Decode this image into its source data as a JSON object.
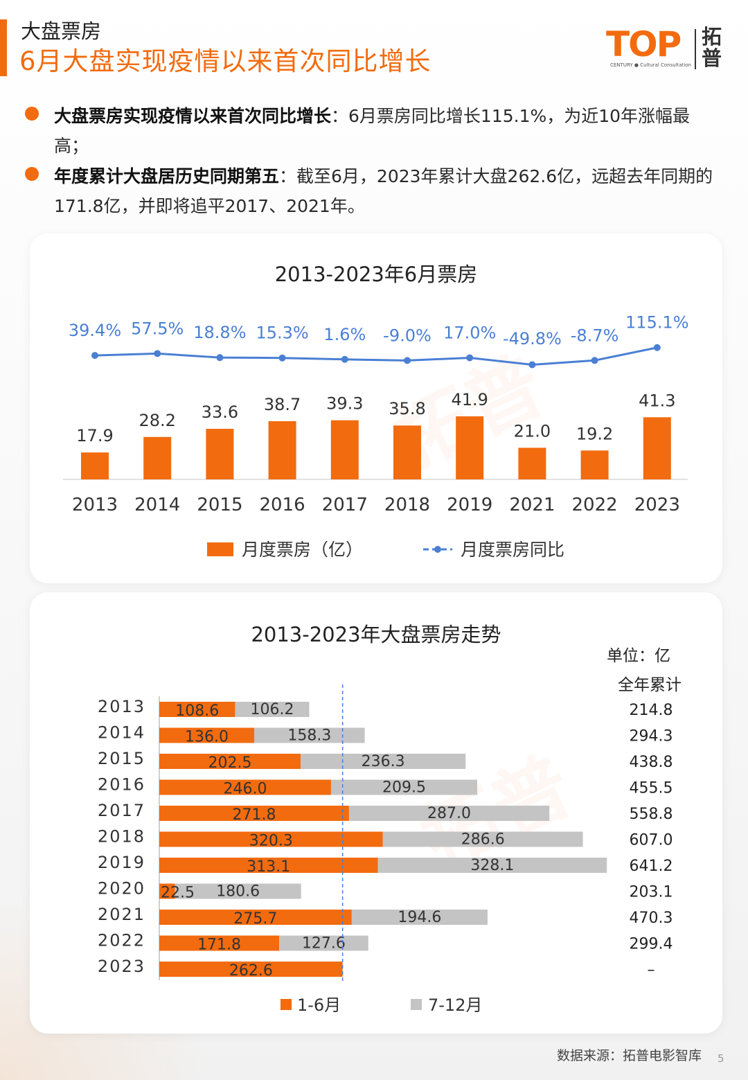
{
  "header": {
    "section_label": "大盘票房",
    "title": "6月大盘实现疫情以来首次同比增长"
  },
  "logo": {
    "brand": "TOP",
    "cn": "拓普",
    "tagline": "CENTURY ● Cultural Consultation"
  },
  "bullets": [
    {
      "bold": "大盘票房实现疫情以来首次同比增长",
      "text": "：6月票房同比增长115.1%，为近10年涨幅最高；"
    },
    {
      "bold": "年度累计大盘居历史同期第五",
      "text": "：截至6月，2023年累计大盘262.6亿，远超去年同期的171.8亿，并即将追平2017、2021年。"
    }
  ],
  "watermark": "拓普",
  "colors": {
    "accent": "#f26b0f",
    "line": "#4a7fd4",
    "grey_bar": "#c4c4c4"
  },
  "chart_data": [
    {
      "type": "bar",
      "title": "2013-2023年6月票房",
      "categories": [
        "2013",
        "2014",
        "2015",
        "2016",
        "2017",
        "2018",
        "2019",
        "2021",
        "2022",
        "2023"
      ],
      "series": [
        {
          "name": "月度票房（亿）",
          "type": "bar",
          "values": [
            17.9,
            28.2,
            33.6,
            38.7,
            39.3,
            35.8,
            41.9,
            21.0,
            19.2,
            41.3
          ],
          "labels": [
            "17.9",
            "28.2",
            "33.6",
            "38.7",
            "39.3",
            "35.8",
            "41.9",
            "21.0",
            "19.2",
            "41.3"
          ]
        },
        {
          "name": "月度票房同比",
          "type": "line",
          "values": [
            39.4,
            57.5,
            18.8,
            15.3,
            1.6,
            -9.0,
            17.0,
            -49.8,
            -8.7,
            115.1
          ],
          "labels": [
            "39.4%",
            "57.5%",
            "18.8%",
            "15.3%",
            "1.6%",
            "-9.0%",
            "17.0%",
            "-49.8%",
            "-8.7%",
            "115.1%"
          ]
        }
      ],
      "ylim": [
        0,
        60
      ],
      "legend_position": "bottom"
    },
    {
      "type": "bar",
      "orientation": "horizontal",
      "stacked": true,
      "title": "2013-2023年大盘票房走势",
      "unit": "单位：亿",
      "total_header": "全年累计",
      "categories": [
        "2013",
        "2014",
        "2015",
        "2016",
        "2017",
        "2018",
        "2019",
        "2020",
        "2021",
        "2022",
        "2023"
      ],
      "series": [
        {
          "name": "1-6月",
          "values": [
            108.6,
            136.0,
            202.5,
            246.0,
            271.8,
            320.3,
            313.1,
            22.5,
            275.7,
            171.8,
            262.6
          ],
          "labels": [
            "108.6",
            "136.0",
            "202.5",
            "246.0",
            "271.8",
            "320.3",
            "313.1",
            "22.5",
            "275.7",
            "171.8",
            "262.6"
          ]
        },
        {
          "name": "7-12月",
          "values": [
            106.2,
            158.3,
            236.3,
            209.5,
            287.0,
            286.6,
            328.1,
            180.6,
            194.6,
            127.6,
            0
          ],
          "labels": [
            "106.2",
            "158.3",
            "236.3",
            "209.5",
            "287.0",
            "286.6",
            "328.1",
            "180.6",
            "194.6",
            "127.6",
            ""
          ]
        }
      ],
      "totals": [
        "214.8",
        "294.3",
        "438.8",
        "455.5",
        "558.8",
        "607.0",
        "641.2",
        "203.1",
        "470.3",
        "299.4",
        "–"
      ],
      "reference_line_value": 262.6,
      "xlim": [
        0,
        650
      ],
      "legend_position": "bottom"
    }
  ],
  "footer": {
    "source": "数据来源：拓普电影智库",
    "page_number": "5"
  }
}
